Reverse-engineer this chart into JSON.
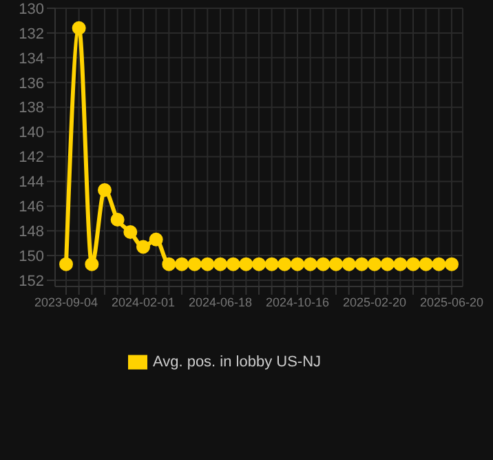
{
  "chart_data": {
    "type": "line",
    "categories": [
      "2023-09-04",
      null,
      null,
      null,
      null,
      null,
      "2024-02-01",
      null,
      null,
      null,
      null,
      null,
      "2024-06-18",
      null,
      null,
      null,
      null,
      null,
      "2024-10-16",
      null,
      null,
      null,
      null,
      null,
      "2025-02-20",
      null,
      null,
      null,
      null,
      null,
      "2025-06-20"
    ],
    "series": [
      {
        "name": "Avg. pos. in lobby US-NJ",
        "color": "#ffd200",
        "values": [
          150.7,
          131.6,
          150.7,
          144.7,
          147.1,
          148.1,
          149.3,
          148.7,
          150.7,
          150.7,
          150.7,
          150.7,
          150.7,
          150.7,
          150.7,
          150.7,
          150.7,
          150.7,
          150.7,
          150.7,
          150.7,
          150.7,
          150.7,
          150.7,
          150.7,
          150.7,
          150.7,
          150.7,
          150.7,
          150.7,
          150.7
        ]
      }
    ],
    "ylim": [
      152.5,
      130
    ],
    "yticks": [
      130,
      132,
      134,
      136,
      138,
      140,
      142,
      144,
      146,
      148,
      150,
      152
    ],
    "grid": true,
    "legend": "bottom",
    "marker": "circle",
    "line_style": "solid"
  }
}
